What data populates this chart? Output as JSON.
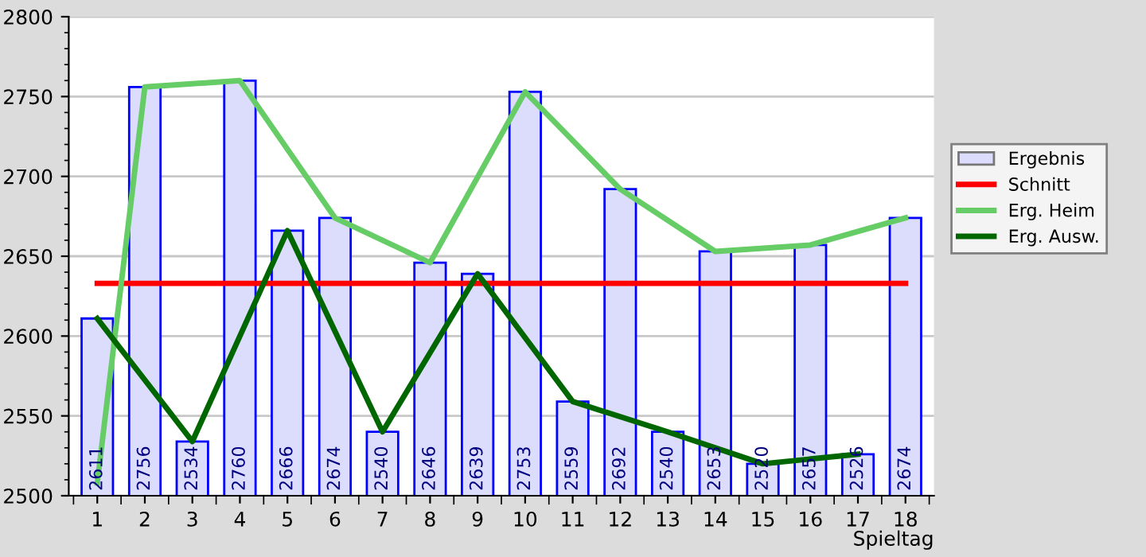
{
  "chart_data": {
    "type": "bar",
    "xlabel": "Spieltag",
    "x": [
      1,
      2,
      3,
      4,
      5,
      6,
      7,
      8,
      9,
      10,
      11,
      12,
      13,
      14,
      15,
      16,
      17,
      18
    ],
    "xlim": [
      0.4,
      18.6
    ],
    "xticks": [
      1,
      2,
      3,
      4,
      5,
      6,
      7,
      8,
      9,
      10,
      11,
      12,
      13,
      14,
      15,
      16,
      17,
      18
    ],
    "ylim": [
      2500,
      2800
    ],
    "yticks": [
      2500,
      2550,
      2600,
      2650,
      2700,
      2750,
      2800
    ],
    "grid": "y",
    "legend": "right",
    "series": [
      {
        "name": "Ergebnis",
        "color": "#dcdcfc",
        "values": [
          2611,
          2756,
          2534,
          2760,
          2666,
          2674,
          2540,
          2646,
          2639,
          2753,
          2559,
          2692,
          2540,
          2653,
          2520,
          2657,
          2526,
          2674
        ],
        "value_labels": [
          "2611",
          "2756",
          "2534",
          "2760",
          "2666",
          "2674",
          "2540",
          "2646",
          "2639",
          "2753",
          "2559",
          "2692",
          "2540",
          "2653",
          "2520",
          "2657",
          "2526",
          "2674"
        ]
      },
      {
        "name": "Schnitt",
        "type": "line",
        "color": "#ff0000",
        "x": [
          1,
          18
        ],
        "values": [
          2633,
          2633
        ]
      },
      {
        "name": "Erg. Heim",
        "type": "line",
        "color": "#66cc66",
        "x": [
          1,
          2,
          4,
          6,
          8,
          10,
          12,
          14,
          16,
          18
        ],
        "values": [
          2508,
          2756,
          2760,
          2674,
          2646,
          2753,
          2692,
          2653,
          2657,
          2674
        ]
      },
      {
        "name": "Erg. Ausw.",
        "type": "line",
        "color": "#006600",
        "x": [
          1,
          3,
          5,
          7,
          9,
          11,
          13,
          15,
          17
        ],
        "values": [
          2611,
          2534,
          2666,
          2540,
          2639,
          2559,
          2540,
          2520,
          2526
        ]
      }
    ]
  }
}
